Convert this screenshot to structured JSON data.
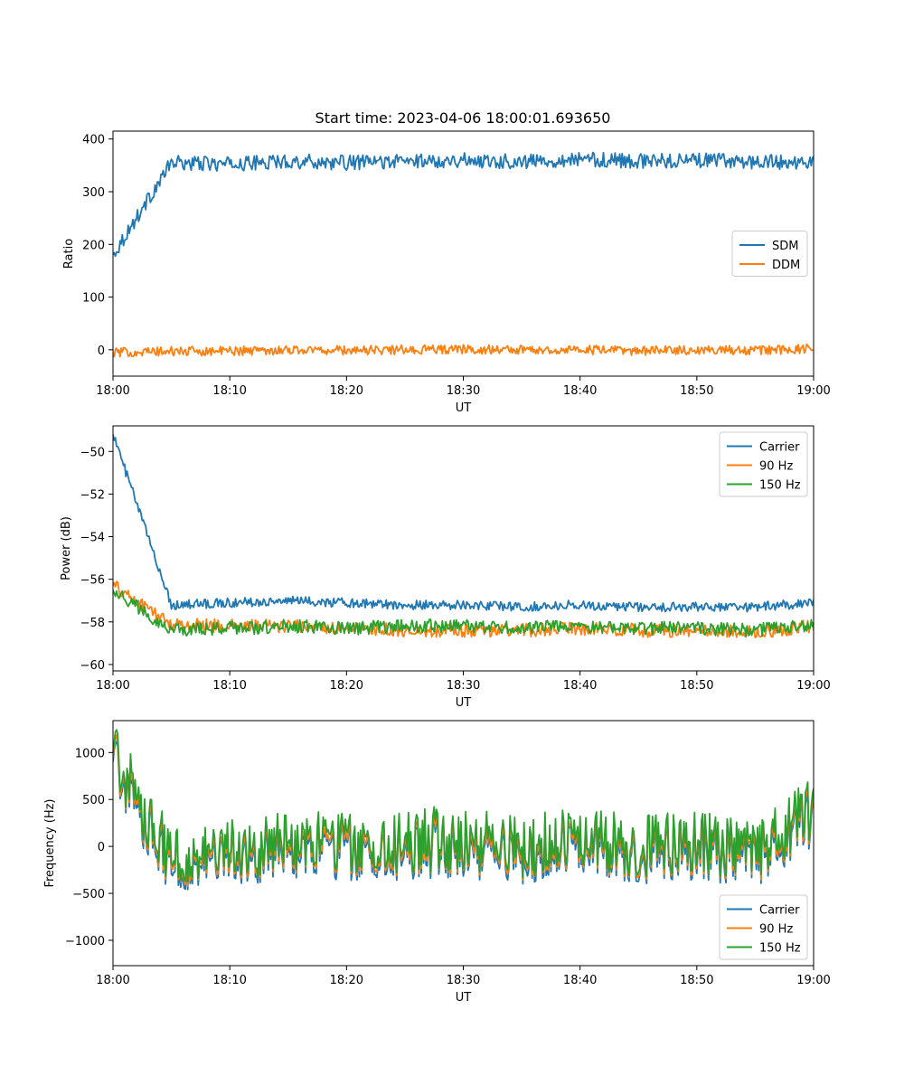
{
  "figure": {
    "title": "Start time: 2023-04-06 18:00:01.693650",
    "colors": {
      "blue": "#1f77b4",
      "orange": "#ff7f0e",
      "green": "#2ca02c"
    }
  },
  "chart_data": [
    {
      "type": "line",
      "xlabel": "UT",
      "ylabel": "Ratio",
      "xlim": [
        "18:00",
        "19:00"
      ],
      "ylim": [
        -50,
        415
      ],
      "x_ticks": [
        "18:00",
        "18:10",
        "18:20",
        "18:30",
        "18:40",
        "18:50",
        "19:00"
      ],
      "y_ticks": [
        0,
        100,
        200,
        300,
        400
      ],
      "legend": "center-right",
      "x_minutes": [
        0,
        5,
        10,
        15,
        20,
        25,
        30,
        35,
        40,
        45,
        50,
        55,
        60
      ],
      "series": [
        {
          "name": "SDM",
          "color": "#1f77b4",
          "values": [
            180,
            355,
            352,
            358,
            355,
            358,
            360,
            357,
            362,
            358,
            360,
            357,
            355
          ]
        },
        {
          "name": "DDM",
          "color": "#ff7f0e",
          "values": [
            -5,
            -3,
            -2,
            0,
            -1,
            0,
            1,
            0,
            0,
            -2,
            0,
            -1,
            2
          ]
        }
      ]
    },
    {
      "type": "line",
      "xlabel": "UT",
      "ylabel": "Power (dB)",
      "xlim": [
        "18:00",
        "19:00"
      ],
      "ylim": [
        -60.3,
        -48.8
      ],
      "x_ticks": [
        "18:00",
        "18:10",
        "18:20",
        "18:30",
        "18:40",
        "18:50",
        "19:00"
      ],
      "y_ticks": [
        -60,
        -58,
        -56,
        -54,
        -52,
        -50
      ],
      "legend": "top-right",
      "x_minutes": [
        0,
        5,
        10,
        15,
        20,
        25,
        30,
        35,
        40,
        45,
        50,
        55,
        60
      ],
      "series": [
        {
          "name": "Carrier",
          "color": "#1f77b4",
          "values": [
            -49.2,
            -57.2,
            -57.1,
            -57.0,
            -57.1,
            -57.2,
            -57.2,
            -57.3,
            -57.2,
            -57.3,
            -57.3,
            -57.3,
            -57.1
          ]
        },
        {
          "name": "90 Hz",
          "color": "#ff7f0e",
          "values": [
            -56.3,
            -58.1,
            -58.2,
            -58.2,
            -58.3,
            -58.4,
            -58.4,
            -58.4,
            -58.3,
            -58.4,
            -58.4,
            -58.5,
            -58.2
          ]
        },
        {
          "name": "150 Hz",
          "color": "#2ca02c",
          "values": [
            -56.5,
            -58.4,
            -58.3,
            -58.2,
            -58.3,
            -58.2,
            -58.2,
            -58.3,
            -58.2,
            -58.3,
            -58.3,
            -58.4,
            -58.1
          ]
        }
      ]
    },
    {
      "type": "line",
      "xlabel": "UT",
      "ylabel": "Frequency (Hz)",
      "xlim": [
        "18:00",
        "19:00"
      ],
      "ylim": [
        -1270,
        1340
      ],
      "x_ticks": [
        "18:00",
        "18:10",
        "18:20",
        "18:30",
        "18:40",
        "18:50",
        "19:00"
      ],
      "y_ticks": [
        -1000,
        -500,
        0,
        500,
        1000
      ],
      "legend": "bottom-right",
      "x_minutes": [
        0,
        5,
        10,
        15,
        20,
        25,
        30,
        35,
        40,
        45,
        50,
        55,
        60
      ],
      "series": [
        {
          "name": "Carrier",
          "color": "#1f77b4",
          "values": [
            900,
            -250,
            -150,
            0,
            -100,
            -50,
            0,
            -100,
            0,
            -100,
            -50,
            -150,
            300
          ]
        },
        {
          "name": "90 Hz",
          "color": "#ff7f0e",
          "values": [
            950,
            -200,
            -100,
            50,
            -50,
            0,
            50,
            -50,
            50,
            -50,
            0,
            -100,
            350
          ]
        },
        {
          "name": "150 Hz",
          "color": "#2ca02c",
          "values": [
            1000,
            -150,
            -50,
            100,
            0,
            50,
            100,
            0,
            100,
            0,
            50,
            -50,
            400
          ]
        }
      ]
    }
  ]
}
